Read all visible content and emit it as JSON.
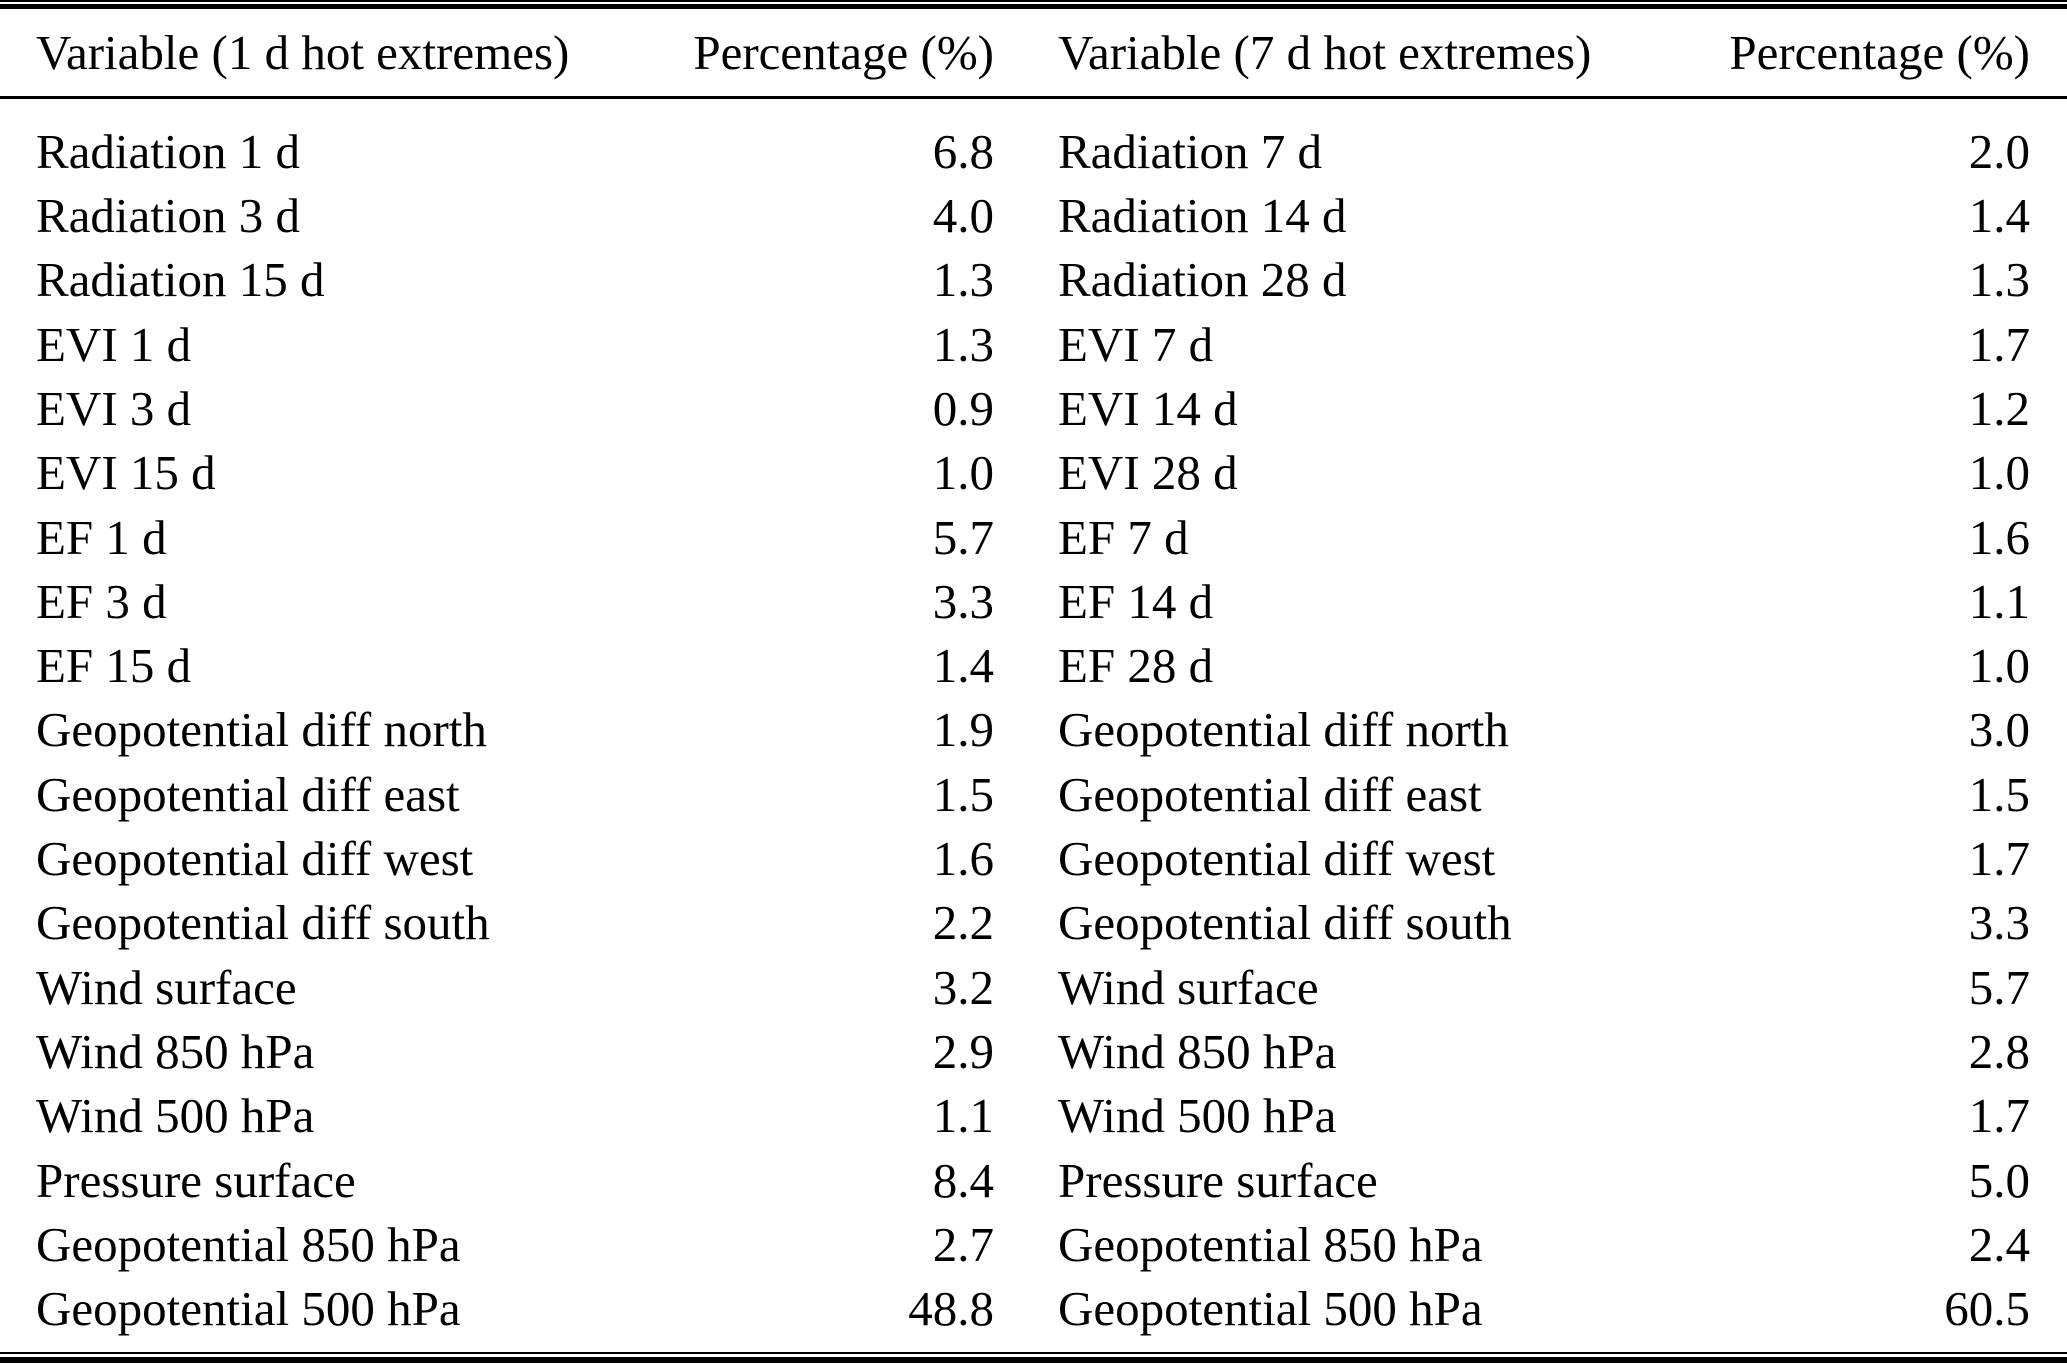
{
  "table": {
    "columns": [
      {
        "label": "Variable (1 d hot extremes)"
      },
      {
        "label": "Percentage (%)"
      },
      {
        "label": "Variable (7 d hot extremes)"
      },
      {
        "label": "Percentage (%)"
      }
    ],
    "left_rows": [
      {
        "variable": "Radiation 1 d",
        "percentage": "6.8"
      },
      {
        "variable": "Radiation 3 d",
        "percentage": "4.0"
      },
      {
        "variable": "Radiation 15 d",
        "percentage": "1.3"
      },
      {
        "variable": "EVI 1 d",
        "percentage": "1.3"
      },
      {
        "variable": "EVI 3 d",
        "percentage": "0.9"
      },
      {
        "variable": "EVI 15 d",
        "percentage": "1.0"
      },
      {
        "variable": "EF 1 d",
        "percentage": "5.7"
      },
      {
        "variable": "EF 3 d",
        "percentage": "3.3"
      },
      {
        "variable": "EF 15 d",
        "percentage": "1.4"
      },
      {
        "variable": "Geopotential diff north",
        "percentage": "1.9"
      },
      {
        "variable": "Geopotential diff east",
        "percentage": "1.5"
      },
      {
        "variable": "Geopotential diff west",
        "percentage": "1.6"
      },
      {
        "variable": "Geopotential diff south",
        "percentage": "2.2"
      },
      {
        "variable": "Wind surface",
        "percentage": "3.2"
      },
      {
        "variable": "Wind 850 hPa",
        "percentage": "2.9"
      },
      {
        "variable": "Wind 500 hPa",
        "percentage": "1.1"
      },
      {
        "variable": "Pressure surface",
        "percentage": "8.4"
      },
      {
        "variable": "Geopotential 850 hPa",
        "percentage": "2.7"
      },
      {
        "variable": "Geopotential 500 hPa",
        "percentage": "48.8"
      }
    ],
    "right_rows": [
      {
        "variable": "Radiation 7 d",
        "percentage": "2.0"
      },
      {
        "variable": "Radiation 14 d",
        "percentage": "1.4"
      },
      {
        "variable": "Radiation 28 d",
        "percentage": "1.3"
      },
      {
        "variable": "EVI 7 d",
        "percentage": "1.7"
      },
      {
        "variable": "EVI 14 d",
        "percentage": "1.2"
      },
      {
        "variable": "EVI 28 d",
        "percentage": "1.0"
      },
      {
        "variable": "EF 7 d",
        "percentage": "1.6"
      },
      {
        "variable": "EF 14 d",
        "percentage": "1.1"
      },
      {
        "variable": "EF 28 d",
        "percentage": "1.0"
      },
      {
        "variable": "Geopotential diff north",
        "percentage": "3.0"
      },
      {
        "variable": "Geopotential diff east",
        "percentage": "1.5"
      },
      {
        "variable": "Geopotential diff west",
        "percentage": "1.7"
      },
      {
        "variable": "Geopotential diff south",
        "percentage": "3.3"
      },
      {
        "variable": "Wind surface",
        "percentage": "5.7"
      },
      {
        "variable": "Wind 850 hPa",
        "percentage": "2.8"
      },
      {
        "variable": "Wind 500 hPa",
        "percentage": "1.7"
      },
      {
        "variable": "Pressure surface",
        "percentage": "5.0"
      },
      {
        "variable": "Geopotential 850 hPa",
        "percentage": "2.4"
      },
      {
        "variable": "Geopotential 500 hPa",
        "percentage": "60.5"
      }
    ]
  },
  "colors": {
    "background": "#ffffff",
    "text": "#000000",
    "rule": "#000000"
  }
}
